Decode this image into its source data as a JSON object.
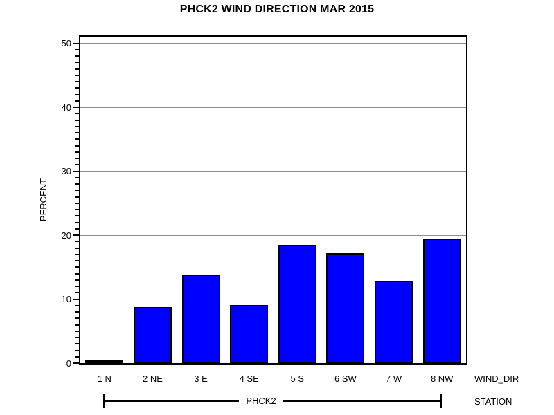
{
  "chart_data": {
    "type": "bar",
    "title": "PHCK2 WIND DIRECTION MAR 2015",
    "categories": [
      "1 N",
      "2 NE",
      "3 E",
      "4 SE",
      "5 S",
      "6 SW",
      "7 W",
      "8 NW"
    ],
    "values": [
      0.2,
      8.8,
      13.8,
      9.1,
      18.5,
      17.2,
      12.9,
      19.5
    ],
    "xlabel": "WIND_DIR",
    "ylabel": "PERCENT",
    "group_axis_label": "STATION",
    "group_label": "PHCK2",
    "ylim": [
      0,
      50
    ],
    "y_major_tick_step": 10,
    "y_minor_tick_step": 1,
    "y_tick_labels": [
      "0",
      "10",
      "20",
      "30",
      "40",
      "50"
    ],
    "grid": true,
    "legend_position": "none",
    "colors": {
      "bar_fill": "#0000ff",
      "bar_border": "#000000",
      "gridline": "#8e8e8e",
      "frame": "#000000",
      "background": "#ffffff",
      "text": "#000000"
    }
  }
}
